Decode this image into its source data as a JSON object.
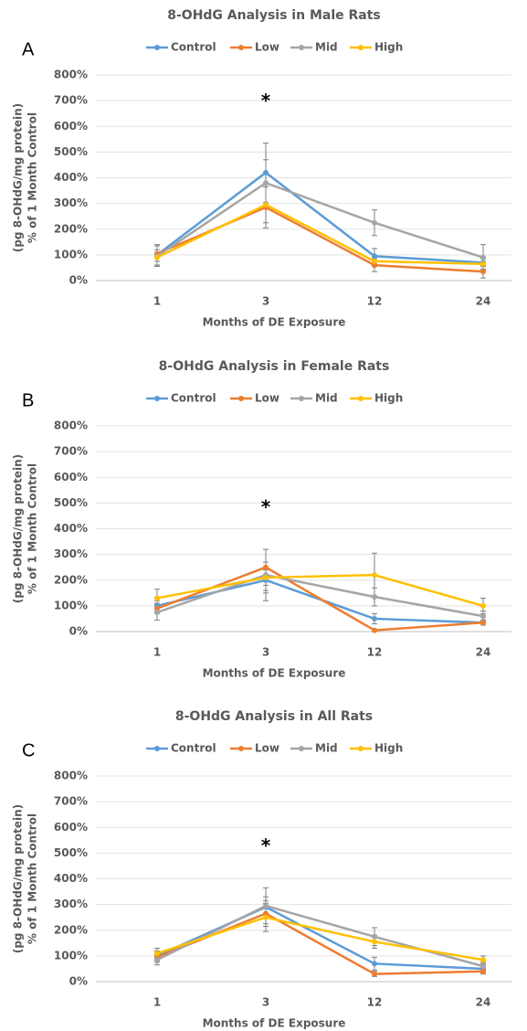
{
  "chart_data": [
    {
      "type": "line",
      "title": "8-OHdG Analysis in Male Rats",
      "panel_label": "A",
      "xlabel": "Months of DE Exposure",
      "ylabel": [
        "(pg 8-OHdG/mg protein)",
        "% of 1 Month Control"
      ],
      "categories": [
        "1",
        "3",
        "12",
        "24"
      ],
      "series": [
        {
          "name": "Control",
          "color": "#5b9bd5",
          "values": [
            100,
            420,
            95,
            70
          ],
          "errors": [
            40,
            115,
            30,
            15
          ]
        },
        {
          "name": "Low",
          "color": "#ed7d31",
          "values": [
            105,
            285,
            60,
            35
          ],
          "errors": [
            30,
            80,
            25,
            25
          ]
        },
        {
          "name": "Mid",
          "color": "#a5a5a5",
          "values": [
            95,
            380,
            225,
            90
          ],
          "errors": [
            40,
            90,
            50,
            50
          ]
        },
        {
          "name": "High",
          "color": "#ffc000",
          "values": [
            90,
            295,
            75,
            65
          ],
          "errors": [
            30,
            70,
            20,
            20
          ]
        }
      ],
      "annotations": [
        {
          "text": "*",
          "category": "3"
        }
      ],
      "ylim": [
        0,
        800
      ],
      "yticks": [
        {
          "value": 0,
          "label": "0%"
        },
        {
          "value": 100,
          "label": "100%"
        },
        {
          "value": 200,
          "label": "200%"
        },
        {
          "value": 300,
          "label": "300%"
        },
        {
          "value": 400,
          "label": "400%"
        },
        {
          "value": 500,
          "label": "500%"
        },
        {
          "value": 600,
          "label": "600%"
        },
        {
          "value": 700,
          "label": "700%"
        },
        {
          "value": 800,
          "label": "800%"
        }
      ],
      "grid": true,
      "legend": "top"
    },
    {
      "type": "line",
      "title": "8-OHdG Analysis in Female Rats",
      "panel_label": "B",
      "xlabel": "Months of DE Exposure",
      "ylabel": [
        "(pg 8-OHdG/mg protein)",
        "% of 1 Month Control"
      ],
      "categories": [
        "1",
        "3",
        "12",
        "24"
      ],
      "series": [
        {
          "name": "Control",
          "color": "#5b9bd5",
          "values": [
            100,
            200,
            50,
            35
          ],
          "errors": [
            20,
            40,
            20,
            10
          ]
        },
        {
          "name": "Low",
          "color": "#ed7d31",
          "values": [
            90,
            250,
            5,
            35
          ],
          "errors": [
            20,
            70,
            5,
            10
          ]
        },
        {
          "name": "Mid",
          "color": "#a5a5a5",
          "values": [
            75,
            220,
            135,
            60
          ],
          "errors": [
            30,
            100,
            35,
            20
          ]
        },
        {
          "name": "High",
          "color": "#ffc000",
          "values": [
            130,
            210,
            220,
            100
          ],
          "errors": [
            35,
            60,
            85,
            30
          ]
        }
      ],
      "annotations": [
        {
          "text": "*",
          "category": "3"
        }
      ],
      "ylim": [
        0,
        800
      ],
      "yticks": [
        {
          "value": 0,
          "label": "0%"
        },
        {
          "value": 100,
          "label": "100%"
        },
        {
          "value": 200,
          "label": "200%"
        },
        {
          "value": 300,
          "label": "300%"
        },
        {
          "value": 400,
          "label": "400%"
        },
        {
          "value": 500,
          "label": "500%"
        },
        {
          "value": 600,
          "label": "600%"
        },
        {
          "value": 700,
          "label": "700%"
        },
        {
          "value": 800,
          "label": "800%"
        }
      ],
      "grid": true,
      "legend": "top"
    },
    {
      "type": "line",
      "title": "8-OHdG Analysis in All Rats",
      "panel_label": "C",
      "xlabel": "Months of DE Exposure",
      "ylabel": [
        "(pg 8-OHdG/mg protein)",
        "% of 1 Month Control"
      ],
      "categories": [
        "1",
        "3",
        "12",
        "24"
      ],
      "series": [
        {
          "name": "Control",
          "color": "#5b9bd5",
          "values": [
            100,
            290,
            70,
            50
          ],
          "errors": [
            20,
            40,
            25,
            15
          ]
        },
        {
          "name": "Low",
          "color": "#ed7d31",
          "values": [
            95,
            265,
            30,
            40
          ],
          "errors": [
            20,
            50,
            10,
            10
          ]
        },
        {
          "name": "Mid",
          "color": "#a5a5a5",
          "values": [
            85,
            295,
            175,
            60
          ],
          "errors": [
            20,
            70,
            35,
            15
          ]
        },
        {
          "name": "High",
          "color": "#ffc000",
          "values": [
            110,
            250,
            155,
            85
          ],
          "errors": [
            20,
            55,
            25,
            15
          ]
        }
      ],
      "annotations": [
        {
          "text": "*",
          "category": "3"
        }
      ],
      "ylim": [
        0,
        800
      ],
      "yticks": [
        {
          "value": 0,
          "label": "0%"
        },
        {
          "value": 100,
          "label": "100%"
        },
        {
          "value": 200,
          "label": "200%"
        },
        {
          "value": 300,
          "label": "300%"
        },
        {
          "value": 400,
          "label": "400%"
        },
        {
          "value": 500,
          "label": "500%"
        },
        {
          "value": 600,
          "label": "600%"
        },
        {
          "value": 700,
          "label": "700%"
        },
        {
          "value": 800,
          "label": "800%"
        }
      ],
      "grid": true,
      "legend": "top"
    }
  ]
}
